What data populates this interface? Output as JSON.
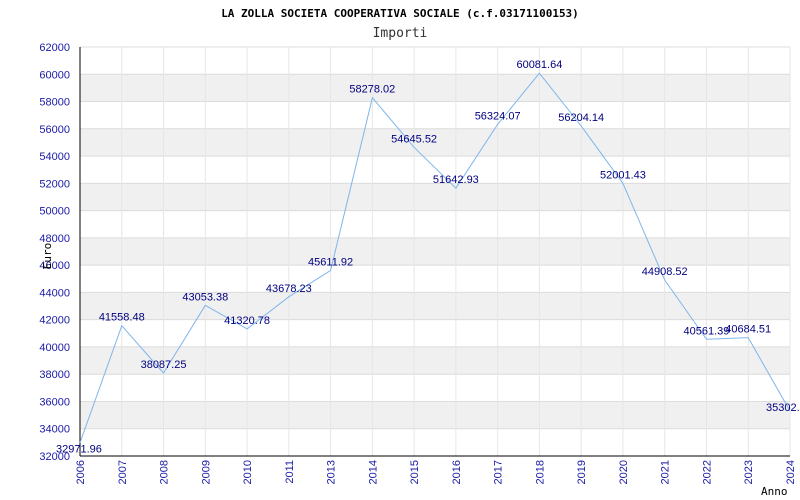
{
  "chart_data": {
    "type": "line",
    "title": "LA ZOLLA SOCIETA COOPERATIVA SOCIALE (c.f.03171100153)",
    "subtitle": "Importi",
    "ylabel": "Euro",
    "xlabel": "Anno",
    "ylim": [
      32000,
      62000
    ],
    "yticks": [
      "32000",
      "34000",
      "36000",
      "38000",
      "40000",
      "42000",
      "44000",
      "46000",
      "48000",
      "50000",
      "52000",
      "54000",
      "56000",
      "58000",
      "60000",
      "62000"
    ],
    "x": [
      "2006",
      "2007",
      "2008",
      "2009",
      "2010",
      "2011",
      "2013",
      "2014",
      "2015",
      "2016",
      "2017",
      "2018",
      "2019",
      "2020",
      "2021",
      "2022",
      "2023",
      "2024"
    ],
    "values": [
      32971.96,
      41558.48,
      38087.25,
      43053.38,
      41320.78,
      43678.23,
      45611.92,
      58278.02,
      54645.52,
      51642.93,
      56324.07,
      60081.64,
      56204.14,
      52001.43,
      44908.52,
      40561.39,
      40684.51,
      35302.0
    ],
    "labels": [
      "32971.96",
      "41558.48",
      "38087.25",
      "43053.38",
      "41320.78",
      "43678.23",
      "45611.92",
      "58278.02",
      "54645.52",
      "51642.93",
      "56324.07",
      "60081.64",
      "56204.14",
      "52001.43",
      "44908.52",
      "40561.39",
      "40684.51",
      "35302."
    ],
    "grid": true,
    "colors": {
      "line": "#7eb6ea",
      "band": "#f0f0f0",
      "axis": "#000000",
      "tick_text": "#1a1aa6",
      "label_text": "#000080"
    }
  }
}
